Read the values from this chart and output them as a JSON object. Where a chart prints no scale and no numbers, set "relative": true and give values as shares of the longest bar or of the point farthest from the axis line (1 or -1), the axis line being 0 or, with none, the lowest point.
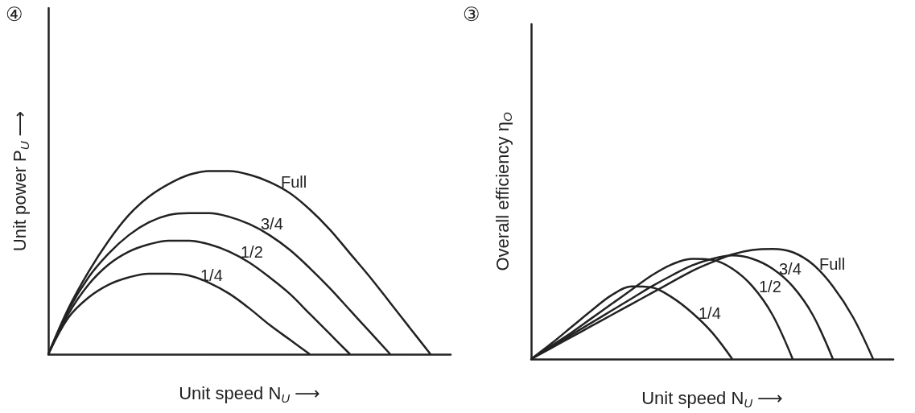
{
  "chart_data": [
    {
      "type": "line",
      "title": "④",
      "xlabel": "Unit speed N$_{U}$ ⟶",
      "ylabel": "Unit power P$_{U}$ ⟶",
      "relative": true,
      "tick_labels": false,
      "marker": "none",
      "categories": [
        null,
        null,
        null,
        null,
        null,
        null,
        null,
        null,
        null,
        null,
        null,
        null,
        null,
        null,
        null,
        null,
        null,
        null,
        null,
        null,
        null
      ],
      "series": [
        {
          "name": "Full",
          "color": "#222222",
          "values": [
            0,
            0.25,
            0.45,
            0.62,
            0.76,
            0.86,
            0.93,
            0.98,
            1.0,
            1.0,
            0.98,
            0.94,
            0.88,
            0.79,
            0.68,
            0.55,
            0.42,
            0.28,
            0.14,
            0,
            null
          ]
        },
        {
          "name": "3/4",
          "color": "#222222",
          "values": [
            0,
            0.24,
            0.42,
            0.55,
            0.65,
            0.72,
            0.76,
            0.77,
            0.77,
            0.75,
            0.71,
            0.65,
            0.57,
            0.47,
            0.36,
            0.24,
            0.12,
            0,
            null,
            null,
            null
          ]
        },
        {
          "name": "1/2",
          "color": "#222222",
          "values": [
            0,
            0.22,
            0.38,
            0.49,
            0.56,
            0.6,
            0.62,
            0.62,
            0.6,
            0.56,
            0.5,
            0.42,
            0.33,
            0.22,
            0.11,
            0,
            null,
            null,
            null,
            null,
            null
          ]
        },
        {
          "name": "1/4",
          "color": "#222222",
          "values": [
            0,
            0.2,
            0.31,
            0.38,
            0.42,
            0.44,
            0.44,
            0.43,
            0.39,
            0.33,
            0.25,
            0.16,
            0.08,
            0,
            null,
            null,
            null,
            null,
            null,
            null,
            null
          ]
        }
      ]
    },
    {
      "type": "line",
      "title": "③",
      "xlabel": "Unit speed N$_{U}$ ⟶",
      "ylabel": "Overall efficiency η$_{O}$",
      "relative": true,
      "tick_labels": false,
      "marker": "none",
      "categories": [
        null,
        null,
        null,
        null,
        null,
        null,
        null,
        null,
        null,
        null,
        null,
        null,
        null,
        null,
        null,
        null,
        null,
        null,
        null
      ],
      "series": [
        {
          "name": "Full",
          "color": "#222222",
          "values": [
            0,
            0.1,
            0.2,
            0.3,
            0.4,
            0.5,
            0.6,
            0.7,
            0.8,
            0.88,
            0.95,
            0.99,
            1.0,
            0.97,
            0.86,
            0.66,
            0.38,
            0,
            null
          ]
        },
        {
          "name": "3/4",
          "color": "#222222",
          "values": [
            0,
            0.11,
            0.22,
            0.33,
            0.44,
            0.55,
            0.66,
            0.76,
            0.85,
            0.91,
            0.94,
            0.91,
            0.82,
            0.66,
            0.4,
            0,
            null,
            null,
            null
          ]
        },
        {
          "name": "1/2",
          "color": "#222222",
          "values": [
            0,
            0.12,
            0.24,
            0.37,
            0.5,
            0.63,
            0.76,
            0.86,
            0.91,
            0.9,
            0.82,
            0.66,
            0.4,
            0,
            null,
            null,
            null,
            null,
            null
          ]
        },
        {
          "name": "1/4",
          "color": "#222222",
          "values": [
            0,
            0.14,
            0.29,
            0.44,
            0.58,
            0.66,
            0.65,
            0.56,
            0.42,
            0.24,
            0,
            null,
            null,
            null,
            null,
            null,
            null,
            null,
            null
          ]
        }
      ]
    }
  ]
}
